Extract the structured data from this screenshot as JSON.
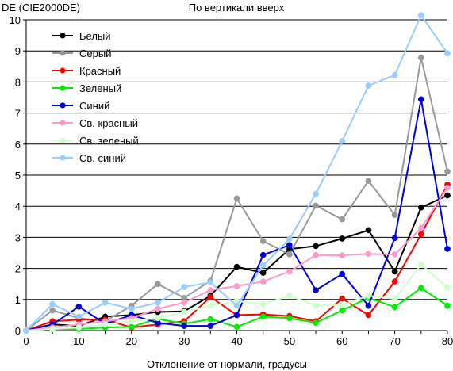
{
  "chart_data": {
    "type": "line",
    "title": "По вертикали вверх",
    "ylabel": "DE (CIE2000DE)",
    "xlabel": "Отклонение от нормали, градусы",
    "x": [
      0,
      5,
      10,
      15,
      20,
      25,
      30,
      35,
      40,
      45,
      50,
      55,
      60,
      65,
      70,
      75,
      80
    ],
    "xlim": [
      0,
      80
    ],
    "ylim": [
      0,
      10
    ],
    "xticks": [
      "0",
      "10",
      "20",
      "30",
      "40",
      "50",
      "60",
      "70",
      "80"
    ],
    "yticks": [
      "0",
      "1",
      "2",
      "3",
      "4",
      "5",
      "6",
      "7",
      "8",
      "9",
      "10"
    ],
    "grid": "horizontal",
    "legend_position": "top-left",
    "series": [
      {
        "name": "Белый",
        "color": "#000000",
        "values": [
          0,
          0.2,
          0.15,
          0.45,
          0.5,
          0.6,
          0.62,
          1.12,
          2.05,
          1.86,
          2.62,
          2.72,
          2.96,
          3.23,
          1.9,
          3.96,
          4.35
        ]
      },
      {
        "name": "Серый",
        "color": "#999999",
        "values": [
          0,
          0.65,
          0.4,
          0.3,
          0.8,
          1.5,
          1.05,
          1.6,
          4.25,
          2.88,
          2.45,
          4.02,
          3.58,
          4.82,
          3.72,
          8.78,
          5.12
        ]
      },
      {
        "name": "Красный",
        "color": "#ff0000",
        "values": [
          0,
          0.3,
          0.35,
          0.35,
          0.1,
          0.2,
          0.3,
          1.08,
          0.5,
          0.52,
          0.47,
          0.3,
          1.03,
          0.5,
          1.58,
          3.1,
          4.7
        ]
      },
      {
        "name": "Зеленый",
        "color": "#00ee00",
        "values": [
          0,
          0.05,
          0.05,
          0.1,
          0.12,
          0.38,
          0.22,
          0.37,
          0.12,
          0.45,
          0.4,
          0.25,
          0.65,
          1.05,
          0.76,
          1.37,
          0.8
        ]
      },
      {
        "name": "Синий",
        "color": "#0000dd",
        "values": [
          0,
          0.2,
          0.77,
          0.22,
          0.5,
          0.25,
          0.15,
          0.15,
          0.5,
          2.43,
          2.75,
          1.3,
          1.82,
          0.8,
          2.98,
          7.44,
          2.63
        ]
      },
      {
        "name": "Св. красный",
        "color": "#ff99cc",
        "values": [
          0,
          0.1,
          0.2,
          0.3,
          0.4,
          0.7,
          0.9,
          1.3,
          1.43,
          1.58,
          1.9,
          2.43,
          2.42,
          2.47,
          2.45,
          3.3,
          4.6
        ]
      },
      {
        "name": "Св. зеленый",
        "color": "#ccffcc",
        "values": [
          0,
          0.05,
          0.1,
          0.2,
          0.3,
          0.4,
          0.6,
          0.8,
          0.95,
          0.85,
          1.12,
          0.8,
          0.82,
          1.12,
          1.02,
          2.13,
          1.38
        ]
      },
      {
        "name": "Св. синий",
        "color": "#99ccff",
        "values": [
          0,
          0.85,
          0.45,
          0.9,
          0.7,
          0.9,
          1.4,
          1.55,
          0.8,
          2.1,
          2.95,
          4.4,
          6.1,
          7.88,
          8.22,
          10.15,
          8.92
        ]
      }
    ]
  }
}
